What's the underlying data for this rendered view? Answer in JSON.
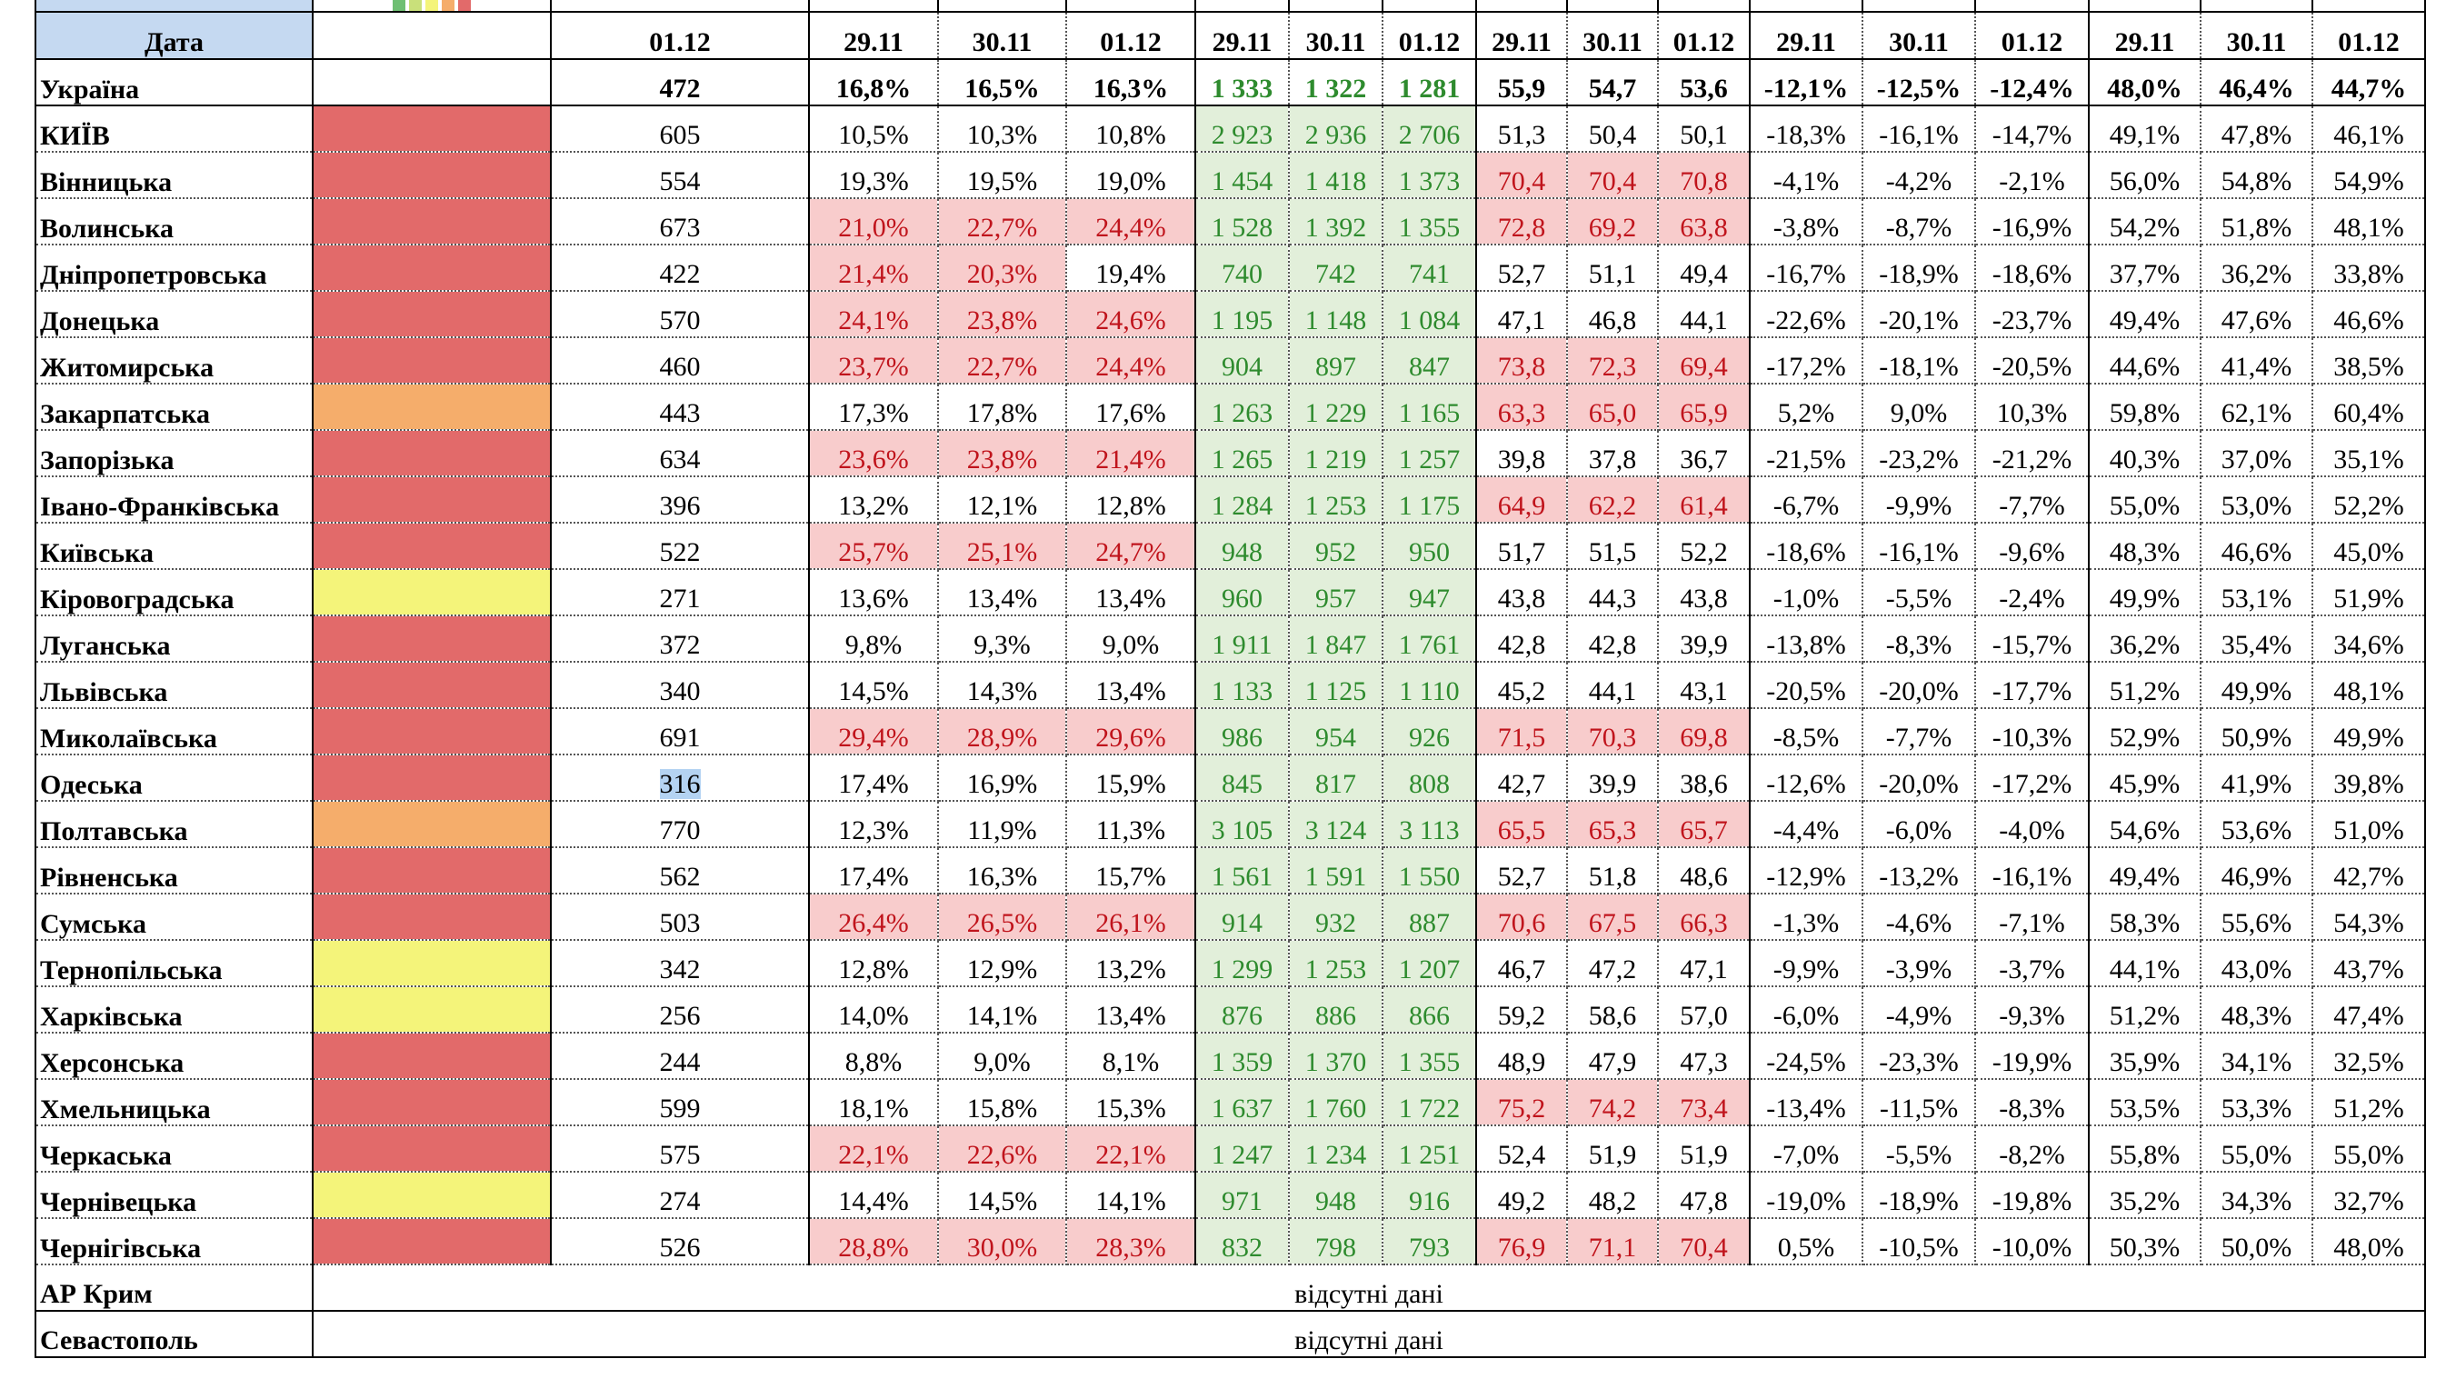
{
  "header": {
    "date_label": "Дата",
    "dates": [
      "01.12",
      "29.11",
      "30.11",
      "01.12",
      "29.11",
      "30.11",
      "01.12",
      "29.11",
      "30.11",
      "01.12",
      "29.11",
      "30.11",
      "01.12",
      "29.11",
      "30.11",
      "01.12"
    ]
  },
  "zone_legend_colors": [
    "#6fbf73",
    "#c9e07a",
    "#f4f47a",
    "#f5ad6b",
    "#e26a6a"
  ],
  "rows": [
    {
      "name": "Україна",
      "values": [
        "472",
        "16,8%",
        "16,5%",
        "16,3%",
        "1 333",
        "1 322",
        "1 281",
        "55,9",
        "54,7",
        "53,6",
        "-12,1%",
        "-12,5%",
        "-12,4%",
        "48,0%",
        "46,4%",
        "44,7%"
      ],
      "highlight": []
    },
    {
      "name": "КИЇВ",
      "zone_color": "#e26a6a",
      "values": [
        "605",
        "10,5%",
        "10,3%",
        "10,8%",
        "2 923",
        "2 936",
        "2 706",
        "51,3",
        "50,4",
        "50,1",
        "-18,3%",
        "-16,1%",
        "-14,7%",
        "49,1%",
        "47,8%",
        "46,1%"
      ],
      "highlight": []
    },
    {
      "name": "Вінницька",
      "zone_color": "#e26a6a",
      "values": [
        "554",
        "19,3%",
        "19,5%",
        "19,0%",
        "1 454",
        "1 418",
        "1 373",
        "70,4",
        "70,4",
        "70,8",
        "-4,1%",
        "-4,2%",
        "-2,1%",
        "56,0%",
        "54,8%",
        "54,9%"
      ],
      "highlight": [
        7,
        8,
        9
      ]
    },
    {
      "name": "Волинська",
      "zone_color": "#e26a6a",
      "values": [
        "673",
        "21,0%",
        "22,7%",
        "24,4%",
        "1 528",
        "1 392",
        "1 355",
        "72,8",
        "69,2",
        "63,8",
        "-3,8%",
        "-8,7%",
        "-16,9%",
        "54,2%",
        "51,8%",
        "48,1%"
      ],
      "highlight": [
        1,
        2,
        3,
        7,
        8,
        9
      ]
    },
    {
      "name": "Дніпропетровська",
      "zone_color": "#e26a6a",
      "values": [
        "422",
        "21,4%",
        "20,3%",
        "19,4%",
        "740",
        "742",
        "741",
        "52,7",
        "51,1",
        "49,4",
        "-16,7%",
        "-18,9%",
        "-18,6%",
        "37,7%",
        "36,2%",
        "33,8%"
      ],
      "highlight": [
        1,
        2
      ]
    },
    {
      "name": "Донецька",
      "zone_color": "#e26a6a",
      "values": [
        "570",
        "24,1%",
        "23,8%",
        "24,6%",
        "1 195",
        "1 148",
        "1 084",
        "47,1",
        "46,8",
        "44,1",
        "-22,6%",
        "-20,1%",
        "-23,7%",
        "49,4%",
        "47,6%",
        "46,6%"
      ],
      "highlight": [
        1,
        2,
        3
      ]
    },
    {
      "name": "Житомирська",
      "zone_color": "#e26a6a",
      "values": [
        "460",
        "23,7%",
        "22,7%",
        "24,4%",
        "904",
        "897",
        "847",
        "73,8",
        "72,3",
        "69,4",
        "-17,2%",
        "-18,1%",
        "-20,5%",
        "44,6%",
        "41,4%",
        "38,5%"
      ],
      "highlight": [
        1,
        2,
        3,
        7,
        8,
        9
      ]
    },
    {
      "name": "Закарпатська",
      "zone_color": "#f5ad6b",
      "values": [
        "443",
        "17,3%",
        "17,8%",
        "17,6%",
        "1 263",
        "1 229",
        "1 165",
        "63,3",
        "65,0",
        "65,9",
        "5,2%",
        "9,0%",
        "10,3%",
        "59,8%",
        "62,1%",
        "60,4%"
      ],
      "highlight": [
        7,
        8,
        9
      ]
    },
    {
      "name": "Запорізька",
      "zone_color": "#e26a6a",
      "values": [
        "634",
        "23,6%",
        "23,8%",
        "21,4%",
        "1 265",
        "1 219",
        "1 257",
        "39,8",
        "37,8",
        "36,7",
        "-21,5%",
        "-23,2%",
        "-21,2%",
        "40,3%",
        "37,0%",
        "35,1%"
      ],
      "highlight": [
        1,
        2,
        3
      ]
    },
    {
      "name": "Івано-Франківська",
      "zone_color": "#e26a6a",
      "values": [
        "396",
        "13,2%",
        "12,1%",
        "12,8%",
        "1 284",
        "1 253",
        "1 175",
        "64,9",
        "62,2",
        "61,4",
        "-6,7%",
        "-9,9%",
        "-7,7%",
        "55,0%",
        "53,0%",
        "52,2%"
      ],
      "highlight": [
        7,
        8,
        9
      ]
    },
    {
      "name": "Київська",
      "zone_color": "#e26a6a",
      "values": [
        "522",
        "25,7%",
        "25,1%",
        "24,7%",
        "948",
        "952",
        "950",
        "51,7",
        "51,5",
        "52,2",
        "-18,6%",
        "-16,1%",
        "-9,6%",
        "48,3%",
        "46,6%",
        "45,0%"
      ],
      "highlight": [
        1,
        2,
        3
      ]
    },
    {
      "name": "Кіровоградська",
      "zone_color": "#f4f47a",
      "values": [
        "271",
        "13,6%",
        "13,4%",
        "13,4%",
        "960",
        "957",
        "947",
        "43,8",
        "44,3",
        "43,8",
        "-1,0%",
        "-5,5%",
        "-2,4%",
        "49,9%",
        "53,1%",
        "51,9%"
      ],
      "highlight": []
    },
    {
      "name": "Луганська",
      "zone_color": "#e26a6a",
      "values": [
        "372",
        "9,8%",
        "9,3%",
        "9,0%",
        "1 911",
        "1 847",
        "1 761",
        "42,8",
        "42,8",
        "39,9",
        "-13,8%",
        "-8,3%",
        "-15,7%",
        "36,2%",
        "35,4%",
        "34,6%"
      ],
      "highlight": []
    },
    {
      "name": "Львівська",
      "zone_color": "#e26a6a",
      "values": [
        "340",
        "14,5%",
        "14,3%",
        "13,4%",
        "1 133",
        "1 125",
        "1 110",
        "45,2",
        "44,1",
        "43,1",
        "-20,5%",
        "-20,0%",
        "-17,7%",
        "51,2%",
        "49,9%",
        "48,1%"
      ],
      "highlight": []
    },
    {
      "name": "Миколаївська",
      "zone_color": "#e26a6a",
      "values": [
        "691",
        "29,4%",
        "28,9%",
        "29,6%",
        "986",
        "954",
        "926",
        "71,5",
        "70,3",
        "69,8",
        "-8,5%",
        "-7,7%",
        "-10,3%",
        "52,9%",
        "50,9%",
        "49,9%"
      ],
      "highlight": [
        1,
        2,
        3,
        7,
        8,
        9
      ]
    },
    {
      "name": "Одеська",
      "zone_color": "#e26a6a",
      "selected_col": 0,
      "values": [
        "316",
        "17,4%",
        "16,9%",
        "15,9%",
        "845",
        "817",
        "808",
        "42,7",
        "39,9",
        "38,6",
        "-12,6%",
        "-20,0%",
        "-17,2%",
        "45,9%",
        "41,9%",
        "39,8%"
      ],
      "highlight": []
    },
    {
      "name": "Полтавська",
      "zone_color": "#f5ad6b",
      "values": [
        "770",
        "12,3%",
        "11,9%",
        "11,3%",
        "3 105",
        "3 124",
        "3 113",
        "65,5",
        "65,3",
        "65,7",
        "-4,4%",
        "-6,0%",
        "-4,0%",
        "54,6%",
        "53,6%",
        "51,0%"
      ],
      "highlight": [
        7,
        8,
        9
      ]
    },
    {
      "name": "Рівненська",
      "zone_color": "#e26a6a",
      "values": [
        "562",
        "17,4%",
        "16,3%",
        "15,7%",
        "1 561",
        "1 591",
        "1 550",
        "52,7",
        "51,8",
        "48,6",
        "-12,9%",
        "-13,2%",
        "-16,1%",
        "49,4%",
        "46,9%",
        "42,7%"
      ],
      "highlight": []
    },
    {
      "name": "Сумська",
      "zone_color": "#e26a6a",
      "values": [
        "503",
        "26,4%",
        "26,5%",
        "26,1%",
        "914",
        "932",
        "887",
        "70,6",
        "67,5",
        "66,3",
        "-1,3%",
        "-4,6%",
        "-7,1%",
        "58,3%",
        "55,6%",
        "54,3%"
      ],
      "highlight": [
        1,
        2,
        3,
        7,
        8,
        9
      ]
    },
    {
      "name": "Тернопільська",
      "zone_color": "#f4f47a",
      "values": [
        "342",
        "12,8%",
        "12,9%",
        "13,2%",
        "1 299",
        "1 253",
        "1 207",
        "46,7",
        "47,2",
        "47,1",
        "-9,9%",
        "-3,9%",
        "-3,7%",
        "44,1%",
        "43,0%",
        "43,7%"
      ],
      "highlight": []
    },
    {
      "name": "Харківська",
      "zone_color": "#f4f47a",
      "values": [
        "256",
        "14,0%",
        "14,1%",
        "13,4%",
        "876",
        "886",
        "866",
        "59,2",
        "58,6",
        "57,0",
        "-6,0%",
        "-4,9%",
        "-9,3%",
        "51,2%",
        "48,3%",
        "47,4%"
      ],
      "highlight": []
    },
    {
      "name": "Херсонська",
      "zone_color": "#e26a6a",
      "values": [
        "244",
        "8,8%",
        "9,0%",
        "8,1%",
        "1 359",
        "1 370",
        "1 355",
        "48,9",
        "47,9",
        "47,3",
        "-24,5%",
        "-23,3%",
        "-19,9%",
        "35,9%",
        "34,1%",
        "32,5%"
      ],
      "highlight": []
    },
    {
      "name": "Хмельницька",
      "zone_color": "#e26a6a",
      "values": [
        "599",
        "18,1%",
        "15,8%",
        "15,3%",
        "1 637",
        "1 760",
        "1 722",
        "75,2",
        "74,2",
        "73,4",
        "-13,4%",
        "-11,5%",
        "-8,3%",
        "53,5%",
        "53,3%",
        "51,2%"
      ],
      "highlight": [
        7,
        8,
        9
      ]
    },
    {
      "name": "Черкаська",
      "zone_color": "#e26a6a",
      "values": [
        "575",
        "22,1%",
        "22,6%",
        "22,1%",
        "1 247",
        "1 234",
        "1 251",
        "52,4",
        "51,9",
        "51,9",
        "-7,0%",
        "-5,5%",
        "-8,2%",
        "55,8%",
        "55,0%",
        "55,0%"
      ],
      "highlight": [
        1,
        2,
        3
      ]
    },
    {
      "name": "Чернівецька",
      "zone_color": "#f4f47a",
      "values": [
        "274",
        "14,4%",
        "14,5%",
        "14,1%",
        "971",
        "948",
        "916",
        "49,2",
        "48,2",
        "47,8",
        "-19,0%",
        "-18,9%",
        "-19,8%",
        "35,2%",
        "34,3%",
        "32,7%"
      ],
      "highlight": []
    },
    {
      "name": "Чернігівська",
      "zone_color": "#e26a6a",
      "values": [
        "526",
        "28,8%",
        "30,0%",
        "28,3%",
        "832",
        "798",
        "793",
        "76,9",
        "71,1",
        "70,4",
        "0,5%",
        "-10,5%",
        "-10,0%",
        "50,3%",
        "50,0%",
        "48,0%"
      ],
      "highlight": [
        1,
        2,
        3,
        7,
        8,
        9
      ]
    }
  ],
  "missing_rows": [
    {
      "name": "АР Крим",
      "note": "відсутні дані"
    },
    {
      "name": "Севастополь",
      "note": "відсутні дані"
    }
  ]
}
